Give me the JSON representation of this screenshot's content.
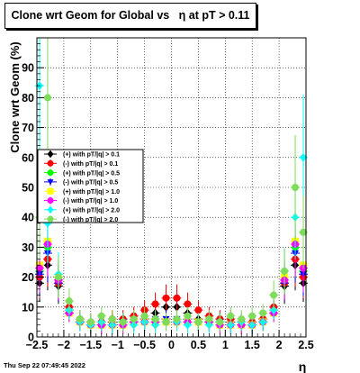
{
  "chart_data": {
    "type": "scatter",
    "title": "Clone wrt Geom for Global vs   η at pT > 0.11",
    "xlabel": "η",
    "ylabel": "Clone wrt Geom (%)",
    "xlim": [
      -2.5,
      2.5
    ],
    "ylim": [
      0,
      100
    ],
    "xticks": [
      "−2.5",
      "−2",
      "−1.5",
      "−1",
      "−0.5",
      "0",
      "0.5",
      "1",
      "1.5",
      "2",
      "2.5"
    ],
    "xtick_values": [
      -2.5,
      -2,
      -1.5,
      -1,
      -0.5,
      0,
      0.5,
      1,
      1.5,
      2,
      2.5
    ],
    "yticks": [
      "0",
      "10",
      "20",
      "30",
      "40",
      "50",
      "60",
      "70",
      "80",
      "90"
    ],
    "ytick_values": [
      0,
      10,
      20,
      30,
      40,
      50,
      60,
      70,
      80,
      90
    ],
    "grid": true,
    "legend_position": "left",
    "series": [
      {
        "name": "(+) with pT/|q| > 0.1",
        "color": "#000000",
        "marker": "diamond",
        "x": [
          -2.45,
          -2.3,
          -2.1,
          -1.9,
          -1.7,
          -1.5,
          -1.3,
          -1.1,
          -0.9,
          -0.7,
          -0.5,
          -0.3,
          -0.1,
          0.1,
          0.3,
          0.5,
          0.7,
          0.9,
          1.1,
          1.3,
          1.5,
          1.7,
          1.9,
          2.1,
          2.3,
          2.45
        ],
        "y": [
          18,
          24,
          17,
          9,
          5,
          4,
          4,
          5,
          5,
          5,
          6,
          8,
          10,
          10,
          8,
          6,
          5,
          5,
          5,
          4,
          4,
          5,
          9,
          17,
          24,
          18
        ]
      },
      {
        "name": "(-) with pT/|q| > 0.1",
        "color": "#ff0000",
        "marker": "circle",
        "x": [
          -2.45,
          -2.3,
          -2.1,
          -1.9,
          -1.7,
          -1.5,
          -1.3,
          -1.1,
          -0.9,
          -0.7,
          -0.5,
          -0.3,
          -0.1,
          0.1,
          0.3,
          0.5,
          0.7,
          0.9,
          1.1,
          1.3,
          1.5,
          1.7,
          1.9,
          2.1,
          2.3,
          2.45
        ],
        "y": [
          20,
          26,
          18,
          10,
          6,
          5,
          5,
          6,
          6,
          7,
          9,
          11,
          13,
          13,
          11,
          9,
          7,
          6,
          6,
          5,
          5,
          6,
          10,
          18,
          26,
          20
        ]
      },
      {
        "name": "(+) with pT/|q| > 0.5",
        "color": "#00ff00",
        "marker": "circle",
        "x": [
          -2.45,
          -2.3,
          -2.1,
          -1.9,
          -1.7,
          -1.5,
          -1.3,
          -1.1,
          -0.9,
          -0.7,
          -0.5,
          -0.3,
          -0.1,
          0.1,
          0.3,
          0.5,
          0.7,
          0.9,
          1.1,
          1.3,
          1.5,
          1.7,
          1.9,
          2.1,
          2.3,
          2.45
        ],
        "y": [
          22,
          30,
          19,
          8,
          5,
          4,
          4,
          4,
          5,
          5,
          5,
          5,
          5,
          5,
          5,
          5,
          5,
          5,
          4,
          4,
          4,
          5,
          8,
          19,
          30,
          22
        ]
      },
      {
        "name": "(-) with pT/|q| > 0.5",
        "color": "#0000ff",
        "marker": "triangle-down",
        "x": [
          -2.45,
          -2.3,
          -2.1,
          -1.9,
          -1.7,
          -1.5,
          -1.3,
          -1.1,
          -0.9,
          -0.7,
          -0.5,
          -0.3,
          -0.1,
          0.1,
          0.3,
          0.5,
          0.7,
          0.9,
          1.1,
          1.3,
          1.5,
          1.7,
          1.9,
          2.1,
          2.3,
          2.45
        ],
        "y": [
          21,
          28,
          18,
          8,
          5,
          4,
          4,
          4,
          5,
          5,
          5,
          6,
          6,
          6,
          6,
          5,
          5,
          5,
          4,
          4,
          4,
          5,
          8,
          18,
          28,
          21
        ]
      },
      {
        "name": "(+) with pT/|q| > 1.0",
        "color": "#ffff00",
        "marker": "square",
        "x": [
          -2.45,
          -2.3,
          -2.1,
          -1.9,
          -1.7,
          -1.5,
          -1.3,
          -1.1,
          -0.9,
          -0.7,
          -0.5,
          -0.3,
          -0.1,
          0.1,
          0.3,
          0.5,
          0.7,
          0.9,
          1.1,
          1.3,
          1.5,
          1.7,
          1.9,
          2.1,
          2.3,
          2.45
        ],
        "y": [
          24,
          32,
          20,
          8,
          5,
          4,
          4,
          4,
          4,
          5,
          5,
          5,
          5,
          5,
          5,
          5,
          5,
          4,
          4,
          4,
          4,
          5,
          8,
          20,
          32,
          24
        ]
      },
      {
        "name": "(-) with pT/|q| > 1.0",
        "color": "#ff00ff",
        "marker": "circle",
        "x": [
          -2.45,
          -2.3,
          -2.1,
          -1.9,
          -1.7,
          -1.5,
          -1.3,
          -1.1,
          -0.9,
          -0.7,
          -0.5,
          -0.3,
          -0.1,
          0.1,
          0.3,
          0.5,
          0.7,
          0.9,
          1.1,
          1.3,
          1.5,
          1.7,
          1.9,
          2.1,
          2.3,
          2.45
        ],
        "y": [
          23,
          31,
          19,
          8,
          5,
          4,
          4,
          4,
          4,
          5,
          5,
          5,
          5,
          5,
          5,
          5,
          5,
          4,
          4,
          4,
          4,
          5,
          8,
          19,
          31,
          23
        ]
      },
      {
        "name": "(+) with pT/|q| > 2.0",
        "color": "#00ffff",
        "marker": "diamond",
        "x": [
          -2.45,
          -2.3,
          -2.1,
          -1.9,
          -1.7,
          -1.5,
          -1.3,
          -1.1,
          -0.9,
          -0.7,
          -0.5,
          -0.3,
          -0.1,
          0.1,
          0.3,
          0.5,
          0.7,
          0.9,
          1.1,
          1.3,
          1.5,
          1.7,
          1.9,
          2.1,
          2.3,
          2.45
        ],
        "y": [
          84,
          38,
          21,
          9,
          5,
          4,
          5,
          4,
          5,
          4,
          5,
          4,
          5,
          5,
          4,
          5,
          4,
          5,
          4,
          5,
          4,
          5,
          9,
          22,
          40,
          60
        ]
      },
      {
        "name": "(-) with pT/|q| > 2.0",
        "color": "#7ddc5a",
        "marker": "circle",
        "x": [
          -2.45,
          -2.3,
          -2.1,
          -1.9,
          -1.7,
          -1.5,
          -1.3,
          -1.1,
          -0.9,
          -0.7,
          -0.5,
          -0.3,
          -0.1,
          0.1,
          0.3,
          0.5,
          0.7,
          0.9,
          1.1,
          1.3,
          1.5,
          1.7,
          1.9,
          2.1,
          2.3,
          2.45
        ],
        "y": [
          40,
          80,
          20,
          12,
          6,
          5,
          7,
          6,
          5,
          6,
          7,
          6,
          5,
          6,
          7,
          5,
          6,
          5,
          7,
          6,
          7,
          8,
          14,
          22,
          50,
          35
        ]
      }
    ]
  },
  "footer": {
    "timestamp": "Thu Sep 22 07:49:45 2022"
  }
}
